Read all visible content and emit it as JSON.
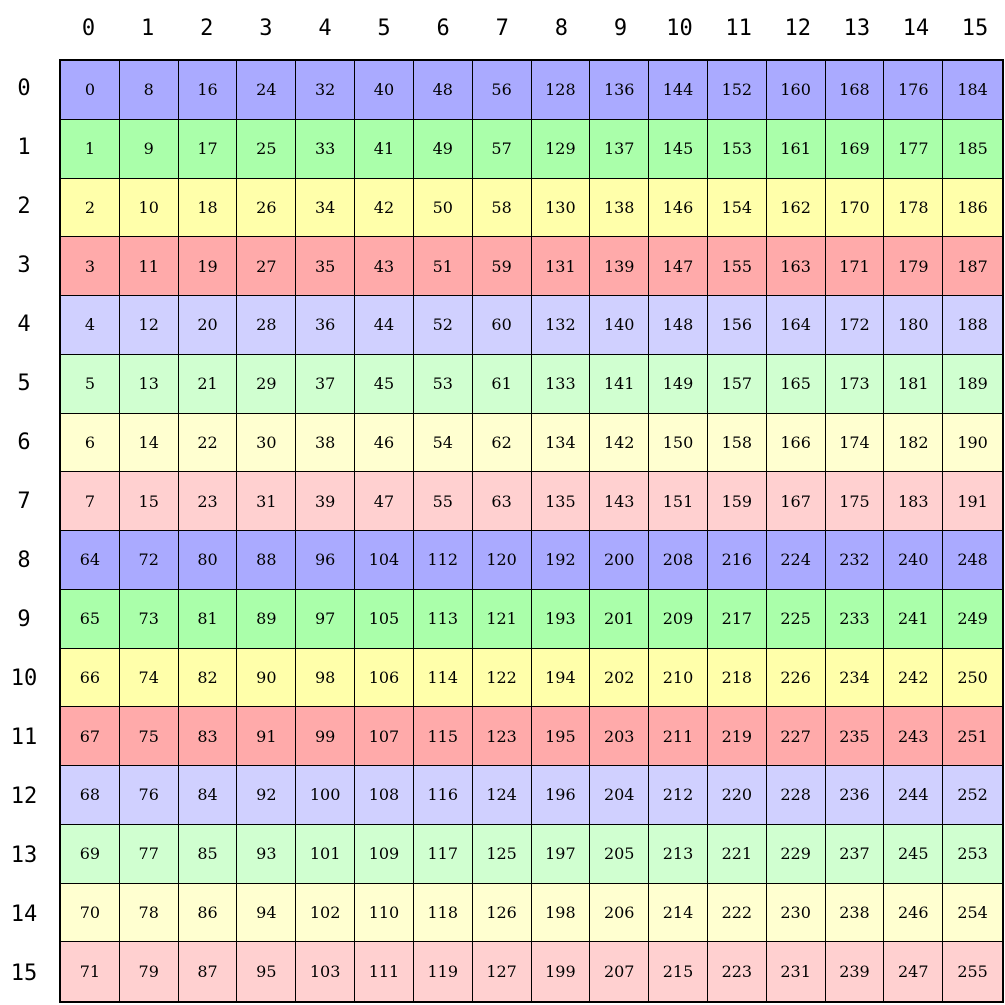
{
  "column_labels": [
    "0",
    "1",
    "2",
    "3",
    "4",
    "5",
    "6",
    "7",
    "8",
    "9",
    "10",
    "11",
    "12",
    "13",
    "14",
    "15"
  ],
  "row_labels": [
    "0",
    "1",
    "2",
    "3",
    "4",
    "5",
    "6",
    "7",
    "8",
    "9",
    "10",
    "11",
    "12",
    "13",
    "14",
    "15"
  ],
  "row_colors": [
    "#aaaaff",
    "#aaffaa",
    "#ffffaa",
    "#ffaaaa",
    "#d0d0ff",
    "#d0ffd0",
    "#ffffd0",
    "#ffd0d0",
    "#aaaaff",
    "#aaffaa",
    "#ffffaa",
    "#ffaaaa",
    "#d0d0ff",
    "#d0ffd0",
    "#ffffd0",
    "#ffd0d0"
  ],
  "cells": [
    [
      "0",
      "8",
      "16",
      "24",
      "32",
      "40",
      "48",
      "56",
      "128",
      "136",
      "144",
      "152",
      "160",
      "168",
      "176",
      "184"
    ],
    [
      "1",
      "9",
      "17",
      "25",
      "33",
      "41",
      "49",
      "57",
      "129",
      "137",
      "145",
      "153",
      "161",
      "169",
      "177",
      "185"
    ],
    [
      "2",
      "10",
      "18",
      "26",
      "34",
      "42",
      "50",
      "58",
      "130",
      "138",
      "146",
      "154",
      "162",
      "170",
      "178",
      "186"
    ],
    [
      "3",
      "11",
      "19",
      "27",
      "35",
      "43",
      "51",
      "59",
      "131",
      "139",
      "147",
      "155",
      "163",
      "171",
      "179",
      "187"
    ],
    [
      "4",
      "12",
      "20",
      "28",
      "36",
      "44",
      "52",
      "60",
      "132",
      "140",
      "148",
      "156",
      "164",
      "172",
      "180",
      "188"
    ],
    [
      "5",
      "13",
      "21",
      "29",
      "37",
      "45",
      "53",
      "61",
      "133",
      "141",
      "149",
      "157",
      "165",
      "173",
      "181",
      "189"
    ],
    [
      "6",
      "14",
      "22",
      "30",
      "38",
      "46",
      "54",
      "62",
      "134",
      "142",
      "150",
      "158",
      "166",
      "174",
      "182",
      "190"
    ],
    [
      "7",
      "15",
      "23",
      "31",
      "39",
      "47",
      "55",
      "63",
      "135",
      "143",
      "151",
      "159",
      "167",
      "175",
      "183",
      "191"
    ],
    [
      "64",
      "72",
      "80",
      "88",
      "96",
      "104",
      "112",
      "120",
      "192",
      "200",
      "208",
      "216",
      "224",
      "232",
      "240",
      "248"
    ],
    [
      "65",
      "73",
      "81",
      "89",
      "97",
      "105",
      "113",
      "121",
      "193",
      "201",
      "209",
      "217",
      "225",
      "233",
      "241",
      "249"
    ],
    [
      "66",
      "74",
      "82",
      "90",
      "98",
      "106",
      "114",
      "122",
      "194",
      "202",
      "210",
      "218",
      "226",
      "234",
      "242",
      "250"
    ],
    [
      "67",
      "75",
      "83",
      "91",
      "99",
      "107",
      "115",
      "123",
      "195",
      "203",
      "211",
      "219",
      "227",
      "235",
      "243",
      "251"
    ],
    [
      "68",
      "76",
      "84",
      "92",
      "100",
      "108",
      "116",
      "124",
      "196",
      "204",
      "212",
      "220",
      "228",
      "236",
      "244",
      "252"
    ],
    [
      "69",
      "77",
      "85",
      "93",
      "101",
      "109",
      "117",
      "125",
      "197",
      "205",
      "213",
      "221",
      "229",
      "237",
      "245",
      "253"
    ],
    [
      "70",
      "78",
      "86",
      "94",
      "102",
      "110",
      "118",
      "126",
      "198",
      "206",
      "214",
      "222",
      "230",
      "238",
      "246",
      "254"
    ],
    [
      "71",
      "79",
      "87",
      "95",
      "103",
      "111",
      "119",
      "127",
      "199",
      "207",
      "215",
      "223",
      "231",
      "239",
      "247",
      "255"
    ]
  ]
}
